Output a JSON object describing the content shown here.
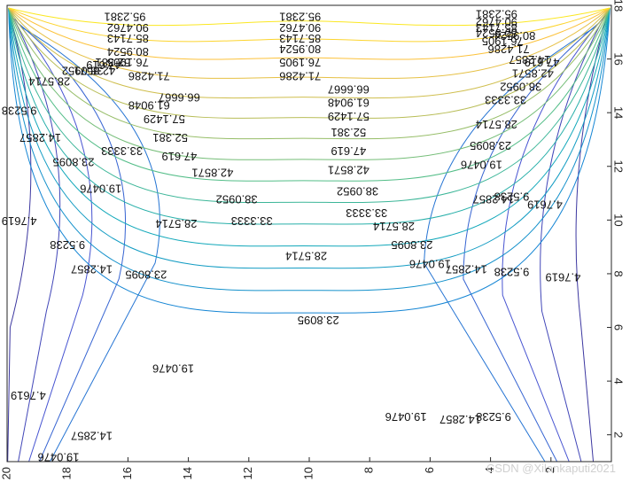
{
  "chart_data": {
    "type": "contour",
    "xlim": [
      20,
      0
    ],
    "ylim": [
      1,
      18
    ],
    "x_ticks": [
      20,
      18,
      16,
      14,
      12,
      10,
      8,
      6,
      4,
      2
    ],
    "y_ticks": [
      2,
      4,
      6,
      8,
      10,
      12,
      14,
      16,
      18
    ],
    "grid": false,
    "colormap": "parula",
    "levels": [
      4.7619,
      9.5238,
      14.2857,
      19.0476,
      23.8095,
      28.5714,
      33.3333,
      38.0952,
      42.8571,
      47.619,
      52.381,
      57.1429,
      61.9048,
      66.6667,
      71.4286,
      76.1905,
      80.9524,
      85.7143,
      90.4762,
      95.2381
    ],
    "contour_labels": [
      {
        "text": "95.2381",
        "x": 10.3,
        "y": 17.6
      },
      {
        "text": "90.4762",
        "x": 10.3,
        "y": 17.2
      },
      {
        "text": "85.7143",
        "x": 10.3,
        "y": 16.8
      },
      {
        "text": "80.9524",
        "x": 10.3,
        "y": 16.4
      },
      {
        "text": "76.1905",
        "x": 10.3,
        "y": 15.9
      },
      {
        "text": "71.4286",
        "x": 10.3,
        "y": 15.4
      },
      {
        "text": "66.6667",
        "x": 8.7,
        "y": 14.9
      },
      {
        "text": "61.9048",
        "x": 8.7,
        "y": 14.4
      },
      {
        "text": "57.1429",
        "x": 8.7,
        "y": 13.9
      },
      {
        "text": "52.381",
        "x": 8.7,
        "y": 13.3
      },
      {
        "text": "47.619",
        "x": 8.7,
        "y": 12.6
      },
      {
        "text": "42.8571",
        "x": 8.7,
        "y": 11.9
      },
      {
        "text": "38.0952",
        "x": 8.4,
        "y": 11.1
      },
      {
        "text": "33.3333",
        "x": 8.1,
        "y": 10.3
      },
      {
        "text": "28.5714",
        "x": 7.2,
        "y": 9.8
      },
      {
        "text": "23.8095",
        "x": 6.6,
        "y": 9.1
      },
      {
        "text": "19.0476",
        "x": 6.0,
        "y": 8.4
      },
      {
        "text": "14.2857",
        "x": 4.8,
        "y": 8.2
      },
      {
        "text": "9.5238",
        "x": 3.3,
        "y": 8.1
      },
      {
        "text": "4.7619",
        "x": 1.6,
        "y": 7.9
      },
      {
        "text": "95.2381",
        "x": 16.1,
        "y": 17.6
      },
      {
        "text": "90.4762",
        "x": 16.0,
        "y": 17.2
      },
      {
        "text": "85.7143",
        "x": 16.0,
        "y": 16.8
      },
      {
        "text": "80.9524",
        "x": 16.0,
        "y": 16.3
      },
      {
        "text": "76.1905",
        "x": 16.0,
        "y": 15.9
      },
      {
        "text": "71.4286",
        "x": 15.3,
        "y": 15.4
      },
      {
        "text": "66.6667",
        "x": 14.3,
        "y": 14.6
      },
      {
        "text": "61.9048",
        "x": 15.3,
        "y": 14.3
      },
      {
        "text": "57.1429",
        "x": 14.8,
        "y": 13.8
      },
      {
        "text": "52.381",
        "x": 14.6,
        "y": 13.1
      },
      {
        "text": "47.619",
        "x": 14.3,
        "y": 12.4
      },
      {
        "text": "42.8571",
        "x": 13.2,
        "y": 11.8
      },
      {
        "text": "38.0952",
        "x": 12.4,
        "y": 10.8
      },
      {
        "text": "33.3333",
        "x": 11.9,
        "y": 10.0
      },
      {
        "text": "28.5714",
        "x": 10.1,
        "y": 8.7
      },
      {
        "text": "23.8095",
        "x": 9.7,
        "y": 6.3
      },
      {
        "text": "19.0476",
        "x": 14.5,
        "y": 4.5
      },
      {
        "text": "14.2857",
        "x": 17.2,
        "y": 2.0
      },
      {
        "text": "19.0476",
        "x": 18.3,
        "y": 1.2
      },
      {
        "text": "4.7619",
        "x": 19.3,
        "y": 3.5
      },
      {
        "text": "9.5238",
        "x": 19.6,
        "y": 14.1
      },
      {
        "text": "14.2857",
        "x": 18.9,
        "y": 13.1
      },
      {
        "text": "23.8095",
        "x": 17.8,
        "y": 12.2
      },
      {
        "text": "19.0476",
        "x": 16.9,
        "y": 11.2
      },
      {
        "text": "33.3333",
        "x": 16.2,
        "y": 12.6
      },
      {
        "text": "28.5714",
        "x": 14.4,
        "y": 9.9
      },
      {
        "text": "23.8095",
        "x": 15.4,
        "y": 8.0
      },
      {
        "text": "9.5238",
        "x": 18.0,
        "y": 9.1
      },
      {
        "text": "14.2857",
        "x": 17.2,
        "y": 8.2
      },
      {
        "text": "4.7619",
        "x": 19.6,
        "y": 10.0
      },
      {
        "text": "28.5714",
        "x": 18.6,
        "y": 15.2
      },
      {
        "text": "38.0952",
        "x": 17.5,
        "y": 15.6
      },
      {
        "text": "42.8571",
        "x": 17.1,
        "y": 15.6
      },
      {
        "text": "47.619",
        "x": 16.8,
        "y": 15.8
      },
      {
        "text": "52.381",
        "x": 16.5,
        "y": 15.9
      },
      {
        "text": "19.0476",
        "x": 6.8,
        "y": 2.7
      },
      {
        "text": "14.2857",
        "x": 5.0,
        "y": 2.6
      },
      {
        "text": "9.5238",
        "x": 3.9,
        "y": 2.7
      },
      {
        "text": "4.7619",
        "x": 2.2,
        "y": 10.6
      },
      {
        "text": "9.5238",
        "x": 3.3,
        "y": 10.9
      },
      {
        "text": "14.2857",
        "x": 3.9,
        "y": 10.8
      },
      {
        "text": "19.0476",
        "x": 4.3,
        "y": 12.1
      },
      {
        "text": "23.8095",
        "x": 4.0,
        "y": 12.8
      },
      {
        "text": "28.5714",
        "x": 3.8,
        "y": 13.6
      },
      {
        "text": "33.3333",
        "x": 3.5,
        "y": 14.5
      },
      {
        "text": "38.0952",
        "x": 3.0,
        "y": 15.0
      },
      {
        "text": "42.8571",
        "x": 2.6,
        "y": 15.5
      },
      {
        "text": "47.619",
        "x": 2.3,
        "y": 15.9
      },
      {
        "text": "71.4286",
        "x": 3.4,
        "y": 16.4
      },
      {
        "text": "76.1905",
        "x": 3.6,
        "y": 16.7
      },
      {
        "text": "80.9524",
        "x": 3.8,
        "y": 17.0
      },
      {
        "text": "85.7143",
        "x": 3.8,
        "y": 17.2
      },
      {
        "text": "90.4762",
        "x": 3.8,
        "y": 17.4
      },
      {
        "text": "95.2381",
        "x": 3.8,
        "y": 17.7
      },
      {
        "text": "80.9524",
        "x": 3.2,
        "y": 16.9
      },
      {
        "text": "14.2857",
        "x": 2.7,
        "y": 16.0
      }
    ]
  },
  "watermark": "CSDN @Xilankaputi2021"
}
